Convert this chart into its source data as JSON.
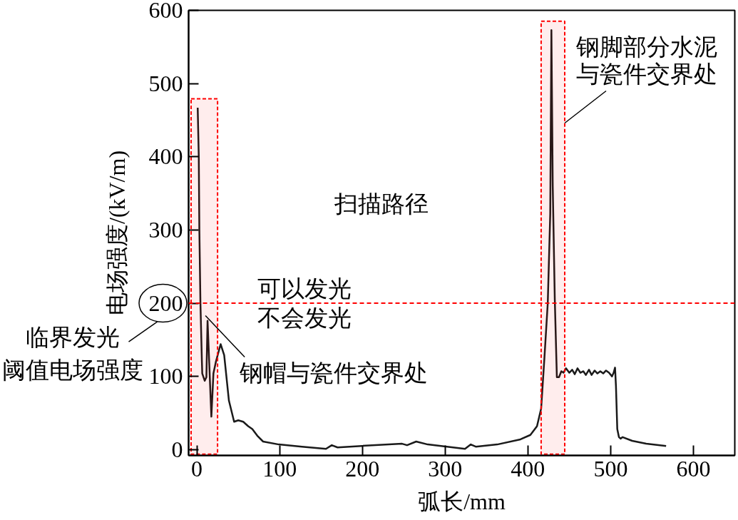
{
  "chart_data": {
    "type": "line",
    "xlabel": "弧长/mm",
    "ylabel": "电场强度/(kV/m)",
    "x": [
      1,
      2.3,
      3,
      4.3,
      6,
      6.5,
      9.5,
      11.5,
      12.9,
      17.5,
      20,
      23,
      28.7,
      33,
      38.7,
      45,
      50,
      56,
      62,
      67,
      73,
      80,
      99,
      127,
      156,
      163,
      170,
      199,
      248,
      254,
      265,
      279,
      324,
      331,
      337,
      363,
      391,
      403,
      411,
      416,
      420,
      424,
      427,
      428.4,
      430,
      432.5,
      435,
      437.6,
      440.4,
      443,
      446,
      450,
      453.5,
      456.6,
      460,
      463.4,
      467,
      470,
      473.8,
      477,
      480.6,
      484,
      487.5,
      491,
      494.4,
      498,
      501.6,
      503.6,
      505.3,
      506.4,
      508,
      510,
      512,
      514.5,
      526,
      543,
      567
    ],
    "values": [
      467,
      400,
      300,
      200,
      123,
      104,
      94,
      99,
      176,
      45,
      104,
      120,
      144,
      129,
      67,
      38,
      40,
      38,
      32,
      28,
      19,
      11,
      7,
      4,
      1,
      6,
      3,
      5,
      8,
      6,
      11,
      7,
      1,
      7,
      4,
      7,
      14,
      20,
      32,
      56,
      126,
      200,
      322,
      573,
      361,
      205,
      99,
      99,
      107,
      105,
      111,
      105,
      109,
      103,
      111,
      105,
      107,
      102,
      109,
      102,
      108,
      104,
      107,
      104,
      108,
      105,
      100,
      105,
      112,
      87,
      28,
      17,
      15,
      17,
      12,
      8,
      5
    ],
    "color": "#1a1a1a",
    "xlim": [
      -10,
      650
    ],
    "xticks": [
      0,
      100,
      200,
      300,
      400,
      500,
      600
    ],
    "ylim": [
      -8,
      600
    ],
    "yticks": [
      0,
      100,
      200,
      300,
      400,
      500,
      600
    ],
    "ref_lines": [
      {
        "axis": "y",
        "value": 200,
        "label": "临界发光阈值电场强度",
        "color": "#ff0000",
        "line_style": "dashed"
      }
    ],
    "bands": [
      {
        "axis": "x",
        "from": -7,
        "to": 25,
        "color": "#ff0000",
        "label": "钢帽与瓷件交界处"
      },
      {
        "axis": "x",
        "from": 416,
        "to": 444.5,
        "color": "#ff0000",
        "label": "钢脚部分水泥与瓷件交界处"
      }
    ],
    "annotations": [
      "扫描路径",
      "可以发光",
      "不会发光"
    ]
  }
}
